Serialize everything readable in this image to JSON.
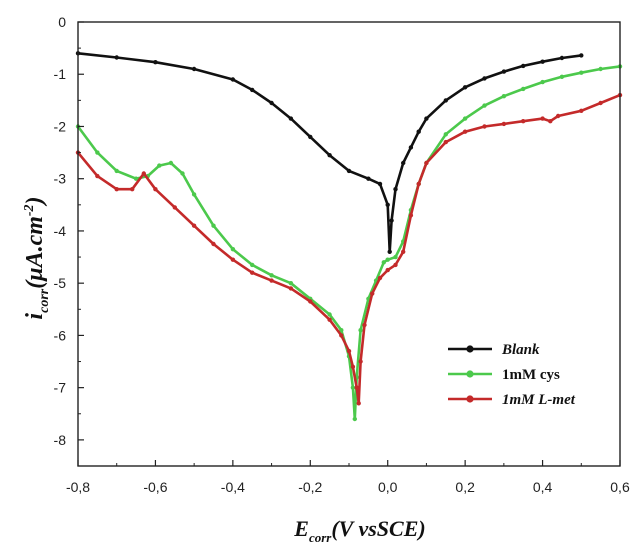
{
  "chart_data": {
    "type": "line",
    "xlabel": {
      "main": "E",
      "sub": "corr",
      "rest": "(V vsSCE)"
    },
    "ylabel": {
      "main": "i",
      "sub": "corr",
      "rest": "(μA.cm",
      "sup": "-2",
      "close": ")"
    },
    "xlim": [
      -0.8,
      0.6
    ],
    "ylim": [
      -8.5,
      0
    ],
    "x_ticks": [
      "-0,8",
      "-0,6",
      "-0,4",
      "-0,2",
      "0,0",
      "0,2",
      "0,4",
      "0,6"
    ],
    "x_tick_values": [
      -0.8,
      -0.6,
      -0.4,
      -0.2,
      0.0,
      0.2,
      0.4,
      0.6
    ],
    "y_ticks": [
      "0",
      "-1",
      "-2",
      "-3",
      "-4",
      "-5",
      "-6",
      "-7",
      "-8"
    ],
    "y_tick_values": [
      0,
      -1,
      -2,
      -3,
      -4,
      -5,
      -6,
      -7,
      -8
    ],
    "grid": false,
    "legend_position": "bottom-right",
    "series": [
      {
        "name": "Blank",
        "color": "#111111",
        "x": [
          -0.8,
          -0.7,
          -0.6,
          -0.5,
          -0.4,
          -0.35,
          -0.3,
          -0.25,
          -0.2,
          -0.15,
          -0.1,
          -0.05,
          -0.02,
          0.0,
          0.005,
          0.01,
          0.02,
          0.04,
          0.06,
          0.08,
          0.1,
          0.15,
          0.2,
          0.25,
          0.3,
          0.35,
          0.4,
          0.45,
          0.5
        ],
        "y": [
          -0.6,
          -0.68,
          -0.77,
          -0.9,
          -1.1,
          -1.3,
          -1.55,
          -1.85,
          -2.2,
          -2.55,
          -2.85,
          -3.0,
          -3.1,
          -3.5,
          -4.4,
          -3.8,
          -3.2,
          -2.7,
          -2.4,
          -2.1,
          -1.85,
          -1.5,
          -1.25,
          -1.08,
          -0.95,
          -0.84,
          -0.76,
          -0.69,
          -0.64
        ]
      },
      {
        "name": "1mM cys",
        "color": "#4cc94c",
        "x": [
          -0.8,
          -0.75,
          -0.7,
          -0.65,
          -0.62,
          -0.59,
          -0.56,
          -0.53,
          -0.5,
          -0.45,
          -0.4,
          -0.35,
          -0.3,
          -0.25,
          -0.2,
          -0.15,
          -0.12,
          -0.1,
          -0.09,
          -0.085,
          -0.08,
          -0.07,
          -0.05,
          -0.03,
          -0.01,
          0.0,
          0.02,
          0.04,
          0.06,
          0.08,
          0.1,
          0.15,
          0.2,
          0.25,
          0.3,
          0.35,
          0.4,
          0.45,
          0.5,
          0.55,
          0.6
        ],
        "y": [
          -2.0,
          -2.5,
          -2.85,
          -3.0,
          -2.95,
          -2.75,
          -2.7,
          -2.9,
          -3.3,
          -3.9,
          -4.35,
          -4.65,
          -4.85,
          -5.0,
          -5.3,
          -5.6,
          -5.9,
          -6.4,
          -7.0,
          -7.6,
          -6.8,
          -5.9,
          -5.3,
          -4.95,
          -4.6,
          -4.55,
          -4.5,
          -4.2,
          -3.6,
          -3.1,
          -2.7,
          -2.15,
          -1.85,
          -1.6,
          -1.42,
          -1.28,
          -1.15,
          -1.05,
          -0.97,
          -0.9,
          -0.85
        ]
      },
      {
        "name": "1mM L-met",
        "color": "#c42a2a",
        "x": [
          -0.8,
          -0.75,
          -0.7,
          -0.66,
          -0.63,
          -0.6,
          -0.55,
          -0.5,
          -0.45,
          -0.4,
          -0.35,
          -0.3,
          -0.25,
          -0.2,
          -0.15,
          -0.12,
          -0.1,
          -0.09,
          -0.08,
          -0.075,
          -0.07,
          -0.06,
          -0.04,
          -0.02,
          0.0,
          0.02,
          0.04,
          0.06,
          0.08,
          0.1,
          0.15,
          0.2,
          0.25,
          0.3,
          0.35,
          0.4,
          0.42,
          0.44,
          0.5,
          0.55,
          0.6
        ],
        "y": [
          -2.5,
          -2.95,
          -3.2,
          -3.2,
          -2.9,
          -3.2,
          -3.55,
          -3.9,
          -4.25,
          -4.55,
          -4.8,
          -4.95,
          -5.1,
          -5.35,
          -5.7,
          -6.0,
          -6.3,
          -6.6,
          -7.0,
          -7.3,
          -6.5,
          -5.8,
          -5.2,
          -4.9,
          -4.75,
          -4.65,
          -4.4,
          -3.7,
          -3.1,
          -2.7,
          -2.3,
          -2.1,
          -2.0,
          -1.95,
          -1.9,
          -1.85,
          -1.9,
          -1.8,
          -1.7,
          -1.55,
          -1.4
        ]
      }
    ]
  }
}
